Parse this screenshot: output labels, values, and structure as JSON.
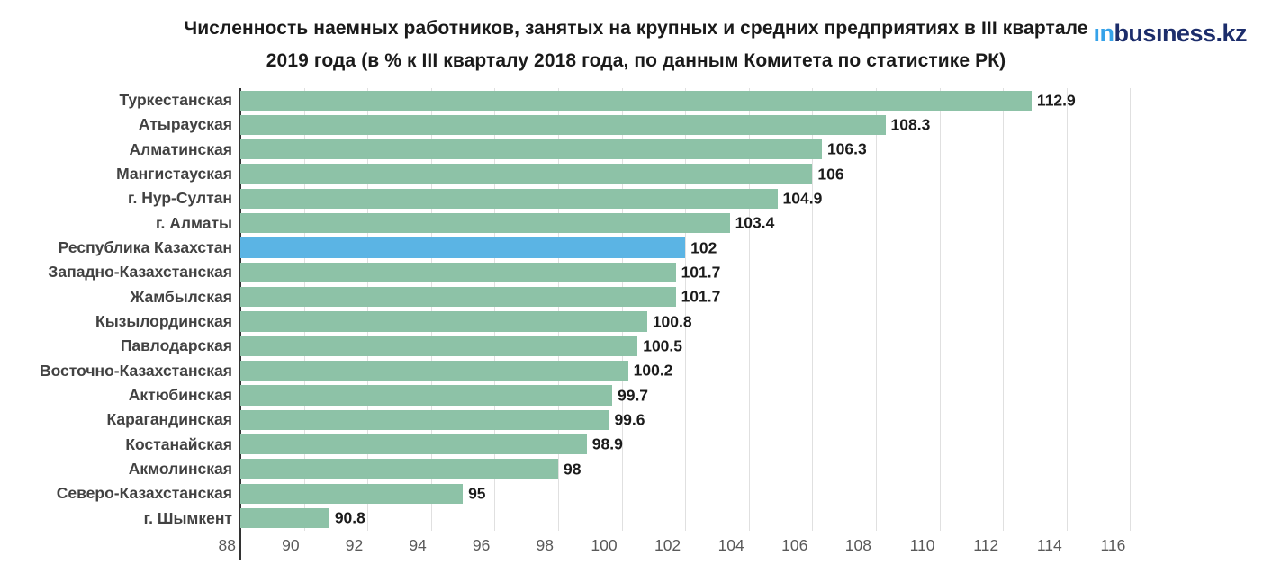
{
  "header": {
    "title_line1": "Численность наемных работников, занятых на крупных и средних предприятиях в III квартале",
    "title_line2": "2019 года (в % к III кварталу 2018 года, по данным Комитета по статистике РК)",
    "logo": {
      "part1": "ın",
      "part2": "busıness.kz",
      "part1_color": "#35a2e9",
      "part2_color": "#1c2d6b"
    }
  },
  "chart_data": {
    "type": "bar",
    "orientation": "horizontal",
    "title": "Численность наемных работников, занятых на крупных и средних предприятиях в III квартале 2019 года (в % к III кварталу 2018 года, по данным Комитета по статистике РК)",
    "categories": [
      "Туркестанская",
      "Атырауская",
      "Алматинская",
      "Мангистауская",
      "г. Нур-Султан",
      "г. Алматы",
      "Республика Казахстан",
      "Западно-Казахстанская",
      "Жамбылская",
      "Кызылординская",
      "Павлодарская",
      "Восточно-Казахстанская",
      "Актюбинская",
      "Карагандинская",
      "Костанайская",
      "Акмолинская",
      "Северо-Казахстанская",
      "г. Шымкент"
    ],
    "values": [
      112.9,
      108.3,
      106.3,
      106,
      104.9,
      103.4,
      102,
      101.7,
      101.7,
      100.8,
      100.5,
      100.2,
      99.7,
      99.6,
      98.9,
      98,
      95,
      90.8
    ],
    "value_labels": [
      "112.9",
      "108.3",
      "106.3",
      "106",
      "104.9",
      "103.4",
      "102",
      "101.7",
      "101.7",
      "100.8",
      "100.5",
      "100.2",
      "99.7",
      "99.6",
      "98.9",
      "98",
      "95",
      "90.8"
    ],
    "highlighted_category": "Республика Казахстан",
    "highlight_index": 6,
    "xlim": [
      88,
      116.5
    ],
    "xticks": [
      88,
      90,
      92,
      94,
      96,
      98,
      100,
      102,
      104,
      106,
      108,
      110,
      112,
      114,
      116
    ],
    "grid": true,
    "legend_position": "none",
    "colors": {
      "bar": "#8dc2a7",
      "highlight": "#5bb4e4",
      "grid": "#e0e0e0",
      "axis": "#333333",
      "category_label": "#424242",
      "value_label": "#1b1b1b",
      "tick_label": "#595959"
    }
  }
}
